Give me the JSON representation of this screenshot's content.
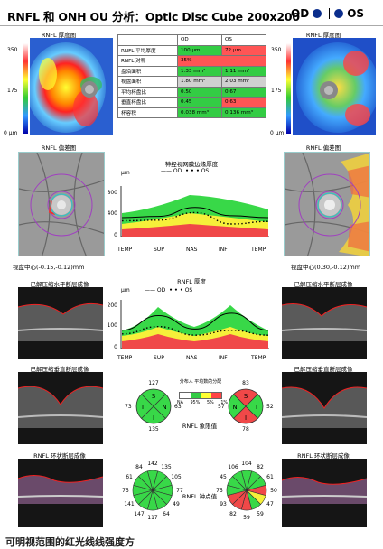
{
  "header": {
    "title": "RNFL 和 ONH OU 分析：Optic Disc Cube 200x200",
    "od_label": "OD",
    "os_label": "OS"
  },
  "thickness_map": {
    "label": "RNFL 厚度图",
    "scale_max": "350",
    "scale_mid": "175",
    "scale_min": "0 μm"
  },
  "deviation_map": {
    "label": "RNFL 偏差图",
    "od_center": "视盘中心(-0.15,-0.12)mm",
    "os_center": "视盘中心(0.30,-0.12)mm"
  },
  "metrics": {
    "col_od": "OD",
    "col_os": "OS",
    "rows": [
      {
        "label": "RNFL 平均厚度",
        "od": "100 μm",
        "os": "72 μm"
      },
      {
        "label": "RNFL 对称",
        "od": "35%",
        "os": ""
      },
      {
        "label": "盘沿面积",
        "od": "1.33 mm²",
        "os": "1.11 mm²"
      },
      {
        "label": "视盘面积",
        "od": "1.80 mm²",
        "os": "2.03 mm²"
      },
      {
        "label": "平均杯盘比",
        "od": "0.50",
        "os": "0.67"
      },
      {
        "label": "垂直杯盘比",
        "od": "0.45",
        "os": "0.63"
      },
      {
        "label": "杯容积",
        "od": "0.038 mm³",
        "os": "0.136 mm³"
      }
    ]
  },
  "nerve_chart": {
    "title": "神经视网膜边缘厚度",
    "unit": "μm",
    "legend_od": "OD",
    "legend_os": "OS",
    "xticks": [
      "TEMP",
      "SUP",
      "NAS",
      "INF",
      "TEMP"
    ],
    "yticks": [
      "800",
      "400",
      "0"
    ],
    "chart_data": {
      "type": "line",
      "x": [
        "TEMP",
        "SUP",
        "NAS",
        "INF",
        "TEMP"
      ],
      "ylim": [
        0,
        800
      ],
      "series": [
        {
          "name": "OD",
          "values": [
            300,
            320,
            460,
            330,
            300
          ]
        },
        {
          "name": "OS",
          "values": [
            250,
            260,
            380,
            200,
            240
          ]
        }
      ]
    }
  },
  "rnfl_chart": {
    "title": "RNFL 厚度",
    "unit": "μm",
    "legend_od": "OD",
    "legend_os": "OS",
    "xticks": [
      "TEMP",
      "SUP",
      "NAS",
      "INF",
      "TEMP"
    ],
    "yticks": [
      "200",
      "100",
      "0"
    ],
    "chart_data": {
      "type": "line",
      "x": [
        "TEMP",
        "SUP",
        "NAS",
        "INF",
        "TEMP"
      ],
      "ylim": [
        0,
        200
      ],
      "series": [
        {
          "name": "OD",
          "values": [
            75,
            135,
            80,
            145,
            75
          ]
        },
        {
          "name": "OS",
          "values": [
            60,
            90,
            55,
            75,
            55
          ]
        }
      ]
    }
  },
  "oct": {
    "horizontal": "已解压缩水平断层成像",
    "vertical": "已解压缩垂直断层成像",
    "circle": "RNFL 环状断层成像"
  },
  "legend_small": {
    "title": "分布人\n平均数的分配",
    "labels": [
      "NA",
      "95%",
      "5%",
      "1%"
    ]
  },
  "quadrants": {
    "label": "RNFL 象限值",
    "od": {
      "top": "127",
      "left": "73",
      "right": "63",
      "bottom": "135",
      "t": "T",
      "s": "S",
      "n": "N",
      "i": "I"
    },
    "os": {
      "top": "83",
      "left": "57",
      "right": "52",
      "bottom": "78",
      "t": "T",
      "s": "S",
      "n": "N",
      "i": "I"
    }
  },
  "clock": {
    "label": "RNFL 钟点值",
    "od": [
      "142",
      "135",
      "105",
      "77",
      "49",
      "64",
      "117",
      "147",
      "141",
      "75",
      "61",
      "84"
    ],
    "os": [
      "104",
      "82",
      "61",
      "50",
      "47",
      "59",
      "59",
      "82",
      "93",
      "75",
      "45",
      "106"
    ]
  },
  "bottom_note": "可明视范围的红光线线强度方"
}
